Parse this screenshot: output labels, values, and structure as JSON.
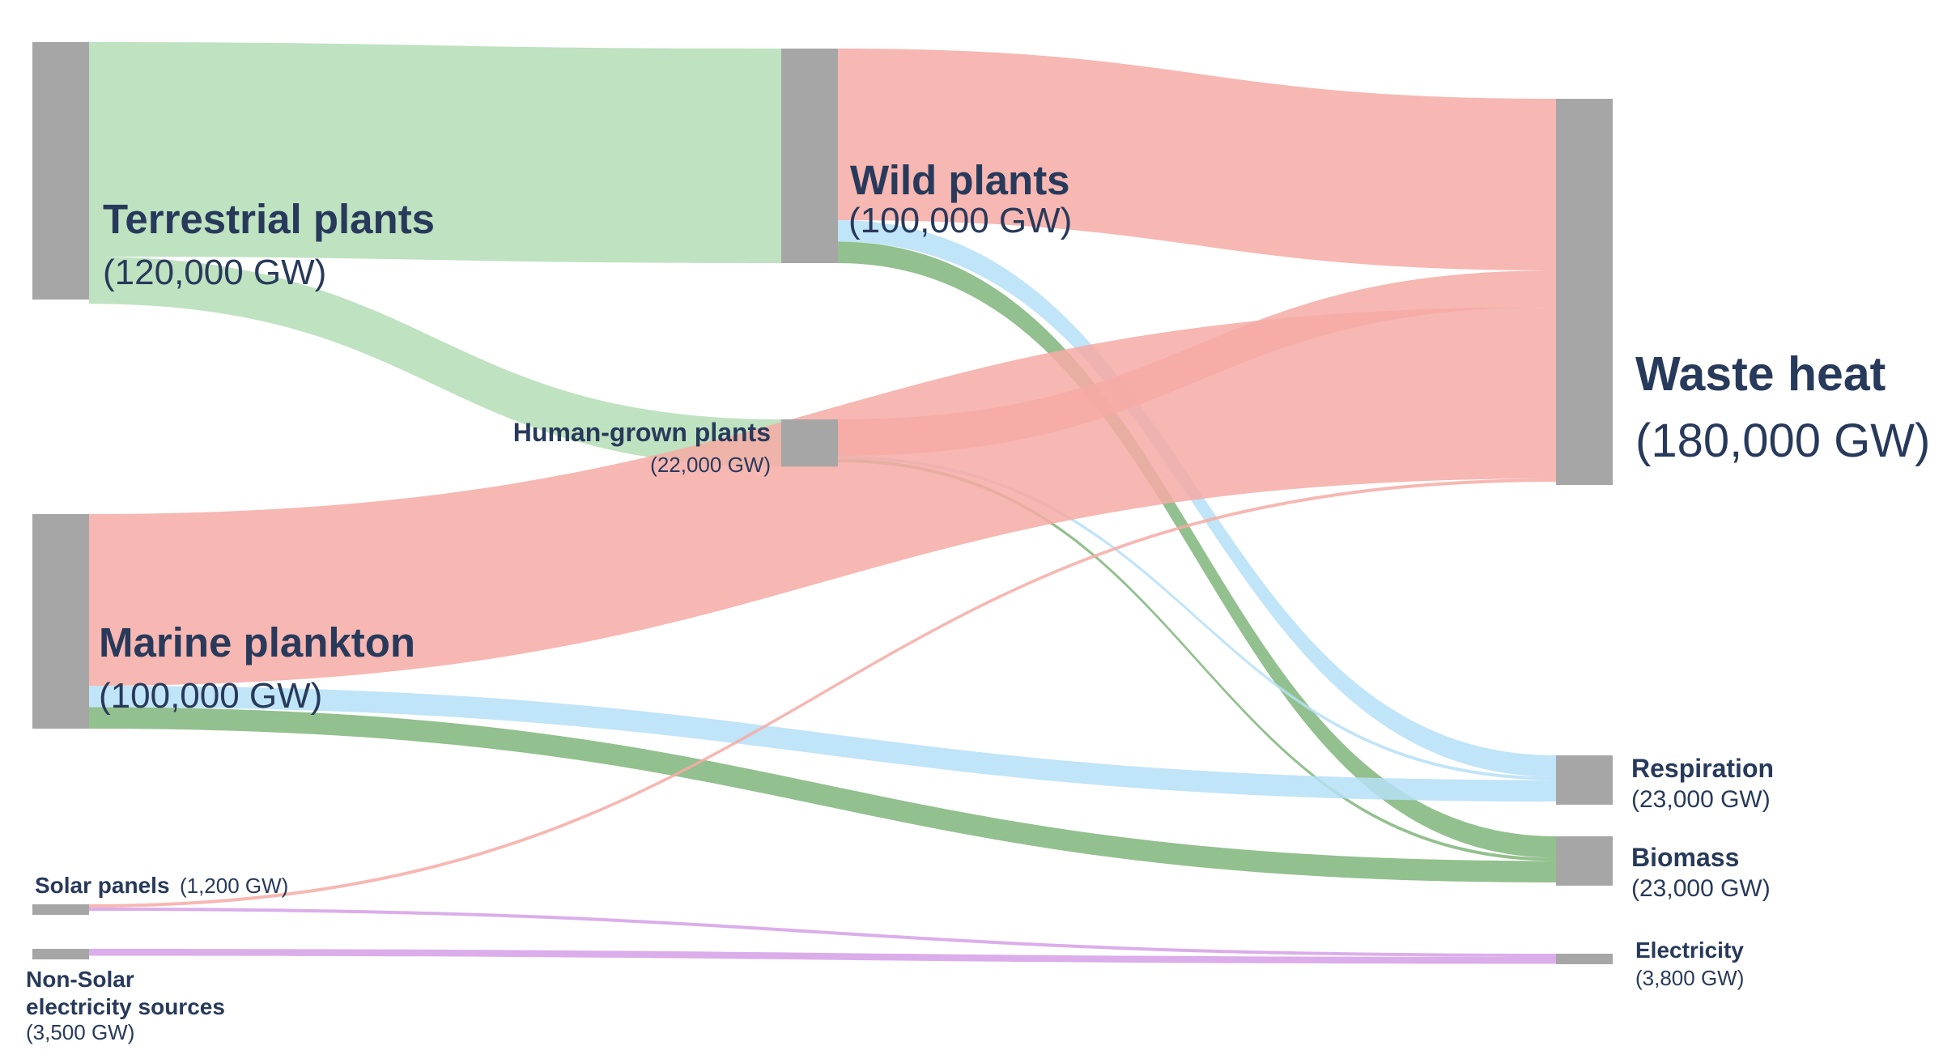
{
  "colors": {
    "node": "#a6a6a6",
    "green_light": "#b4ddb5",
    "green_dark": "#7fb57a",
    "red": "#f6aaa5",
    "blue": "#b5dff7",
    "violet": "#d59fe6",
    "text": "#283a5b"
  },
  "nodes": [
    {
      "id": "terrestrial",
      "name": "Terrestrial plants",
      "value_label": "(120,000 GW)",
      "value": 120000
    },
    {
      "id": "marine",
      "name": "Marine plankton",
      "value_label": "(100,000 GW)",
      "value": 100000
    },
    {
      "id": "solar",
      "name": "Solar panels",
      "value_label": "(1,200 GW)",
      "value": 1200
    },
    {
      "id": "nonsolar",
      "name_line1": "Non-Solar",
      "name_line2": "electricity sources",
      "value_label": "(3,500 GW)",
      "value": 3500
    },
    {
      "id": "wild",
      "name": "Wild plants",
      "value_label": "(100,000 GW)",
      "value": 100000
    },
    {
      "id": "human",
      "name": "Human-grown plants",
      "value_label": "(22,000 GW)",
      "value": 22000
    },
    {
      "id": "waste",
      "name": "Waste heat",
      "value_label": "(180,000 GW)",
      "value": 180000
    },
    {
      "id": "respiration",
      "name": "Respiration",
      "value_label": "(23,000 GW)",
      "value": 23000
    },
    {
      "id": "biomass",
      "name": "Biomass",
      "value_label": "(23,000 GW)",
      "value": 23000
    },
    {
      "id": "electricity",
      "name": "Electricity",
      "value_label": "(3,800 GW)",
      "value": 3800
    }
  ],
  "links": [
    {
      "source": "terrestrial",
      "target": "wild",
      "value": 100000,
      "color": "green_light"
    },
    {
      "source": "terrestrial",
      "target": "human",
      "value": 22000,
      "color": "green_light"
    },
    {
      "source": "wild",
      "target": "waste",
      "value": 80000,
      "color": "red"
    },
    {
      "source": "wild",
      "target": "respiration",
      "value": 10000,
      "color": "blue"
    },
    {
      "source": "wild",
      "target": "biomass",
      "value": 10000,
      "color": "green_dark"
    },
    {
      "source": "human",
      "target": "waste",
      "value": 17000,
      "color": "red"
    },
    {
      "source": "human",
      "target": "respiration",
      "value": 1000,
      "color": "blue"
    },
    {
      "source": "human",
      "target": "biomass",
      "value": 1000,
      "color": "green_dark"
    },
    {
      "source": "marine",
      "target": "waste",
      "value": 80000,
      "color": "red"
    },
    {
      "source": "marine",
      "target": "respiration",
      "value": 10000,
      "color": "blue"
    },
    {
      "source": "marine",
      "target": "biomass",
      "value": 10000,
      "color": "green_dark"
    },
    {
      "source": "solar",
      "target": "waste",
      "value": 600,
      "color": "red"
    },
    {
      "source": "solar",
      "target": "electricity",
      "value": 600,
      "color": "violet"
    },
    {
      "source": "nonsolar",
      "target": "electricity",
      "value": 3200,
      "color": "violet"
    }
  ]
}
